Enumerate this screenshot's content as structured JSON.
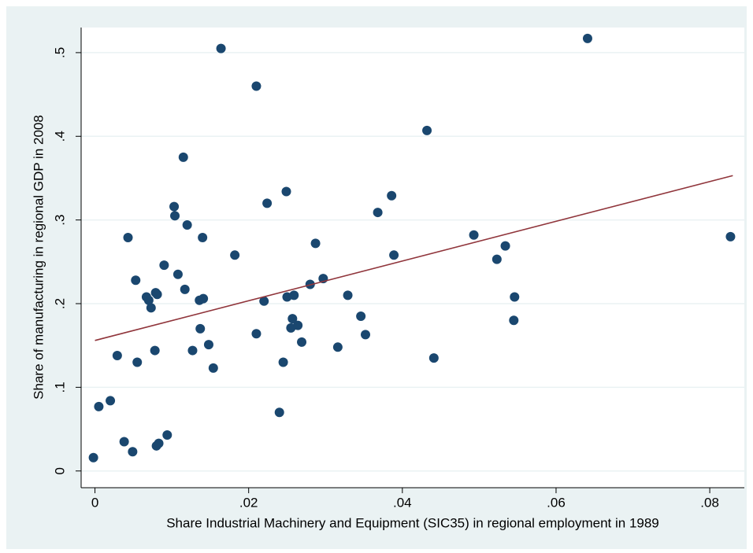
{
  "chart_data": {
    "type": "scatter",
    "xlabel": "Share Industrial Machinery and Equipment (SIC35) in regional employment in 1989",
    "ylabel": "Share of manufacturing in regional GDP in 2008",
    "x": [
      -0.0002,
      0.0005,
      0.002,
      0.0029,
      0.0038,
      0.0043,
      0.0049,
      0.0053,
      0.0055,
      0.0067,
      0.007,
      0.0073,
      0.0078,
      0.0079,
      0.0081,
      0.008,
      0.0083,
      0.009,
      0.0094,
      0.0103,
      0.0104,
      0.0108,
      0.0115,
      0.0117,
      0.012,
      0.0127,
      0.0136,
      0.0137,
      0.014,
      0.0141,
      0.0148,
      0.0154,
      0.0164,
      0.0182,
      0.021,
      0.021,
      0.022,
      0.0224,
      0.024,
      0.0245,
      0.0249,
      0.025,
      0.0255,
      0.0257,
      0.0259,
      0.0264,
      0.0269,
      0.028,
      0.0287,
      0.0297,
      0.0316,
      0.0329,
      0.0346,
      0.0352,
      0.0368,
      0.0386,
      0.0389,
      0.0432,
      0.0441,
      0.0493,
      0.0523,
      0.0534,
      0.0546,
      0.0545,
      0.0641,
      0.0827
    ],
    "values": [
      0.016,
      0.077,
      0.084,
      0.138,
      0.035,
      0.279,
      0.023,
      0.228,
      0.13,
      0.208,
      0.204,
      0.195,
      0.144,
      0.213,
      0.211,
      0.03,
      0.033,
      0.246,
      0.043,
      0.316,
      0.305,
      0.235,
      0.375,
      0.217,
      0.294,
      0.144,
      0.204,
      0.17,
      0.279,
      0.206,
      0.151,
      0.123,
      0.505,
      0.258,
      0.46,
      0.164,
      0.203,
      0.32,
      0.07,
      0.13,
      0.334,
      0.208,
      0.171,
      0.182,
      0.21,
      0.174,
      0.154,
      0.223,
      0.272,
      0.23,
      0.148,
      0.21,
      0.185,
      0.163,
      0.309,
      0.329,
      0.258,
      0.407,
      0.135,
      0.282,
      0.253,
      0.269,
      0.208,
      0.18,
      0.517,
      0.28
    ],
    "color": "#1a476f",
    "fit": {
      "x": [
        0,
        0.083
      ],
      "values": [
        0.156,
        0.353
      ],
      "color": "#90353b"
    },
    "xlim": [
      -0.0018,
      0.0845
    ],
    "ylim": [
      -0.02,
      0.53
    ],
    "xticks": [
      0,
      {
        "value": 0.02,
        "label": ".02"
      },
      {
        "value": 0.04,
        "label": ".04"
      },
      {
        "value": 0.06,
        "label": ".06"
      },
      {
        "value": 0.08,
        "label": ".08"
      }
    ],
    "yticks": [
      0,
      {
        "value": 0.1,
        "label": ".1"
      },
      {
        "value": 0.2,
        "label": ".2"
      },
      {
        "value": 0.3,
        "label": ".3"
      },
      {
        "value": 0.4,
        "label": ".4"
      },
      {
        "value": 0.5,
        "label": ".5"
      }
    ],
    "grid": true
  }
}
